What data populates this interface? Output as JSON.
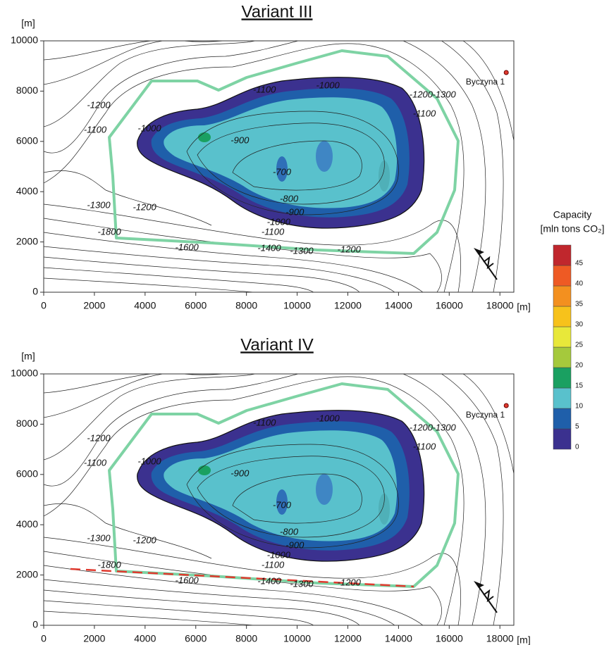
{
  "chart_data": [
    {
      "type": "contour",
      "title": "Variant III",
      "xlabel": "[m]",
      "ylabel": "[m]",
      "xlim": [
        0,
        18550
      ],
      "ylim": [
        0,
        10000
      ],
      "xticks": [
        0,
        2000,
        4000,
        6000,
        8000,
        10000,
        12000,
        14000,
        16000,
        18000
      ],
      "yticks": [
        0,
        2000,
        4000,
        6000,
        8000,
        10000
      ],
      "contour_labels": [
        {
          "value": -1200,
          "x": 2170,
          "y": 7420
        },
        {
          "value": -1100,
          "x": 2030,
          "y": 6440
        },
        {
          "value": -1000,
          "x": 4170,
          "y": 6500
        },
        {
          "value": -1100,
          "x": 8710,
          "y": 8040
        },
        {
          "value": -1000,
          "x": 11210,
          "y": 8210
        },
        {
          "value": -900,
          "x": 7740,
          "y": 6020
        },
        {
          "value": -700,
          "x": 9400,
          "y": 4760
        },
        {
          "value": -800,
          "x": 9680,
          "y": 3700
        },
        {
          "value": -900,
          "x": 9910,
          "y": 3170
        },
        {
          "value": -1000,
          "x": 9270,
          "y": 2770
        },
        {
          "value": -1100,
          "x": 9040,
          "y": 2380
        },
        {
          "value": -1200,
          "x": 14890,
          "y": 7840
        },
        {
          "value": -1100,
          "x": 15020,
          "y": 7090
        },
        {
          "value": -1300,
          "x": 15800,
          "y": 7840
        },
        {
          "value": -1300,
          "x": 2170,
          "y": 3450
        },
        {
          "value": -1200,
          "x": 3980,
          "y": 3360
        },
        {
          "value": -1800,
          "x": 2590,
          "y": 2380
        },
        {
          "value": -1600,
          "x": 5650,
          "y": 1760
        },
        {
          "value": -1400,
          "x": 8900,
          "y": 1740
        },
        {
          "value": -1300,
          "x": 10180,
          "y": 1620
        },
        {
          "value": -1200,
          "x": 12050,
          "y": 1680
        }
      ],
      "well": {
        "name": "Byczyna 1",
        "x": 18250,
        "y": 8740,
        "color": "#e03a2f"
      }
    },
    {
      "type": "contour",
      "title": "Variant IV",
      "xlabel": "[m]",
      "ylabel": "[m]",
      "xlim": [
        0,
        18550
      ],
      "ylim": [
        0,
        10000
      ],
      "xticks": [
        0,
        2000,
        4000,
        6000,
        8000,
        10000,
        12000,
        14000,
        16000,
        18000
      ],
      "yticks": [
        0,
        2000,
        4000,
        6000,
        8000,
        10000
      ],
      "contour_labels": [
        {
          "value": -1200,
          "x": 2170,
          "y": 7420
        },
        {
          "value": -1100,
          "x": 2030,
          "y": 6440
        },
        {
          "value": -1000,
          "x": 4170,
          "y": 6500
        },
        {
          "value": -1100,
          "x": 8710,
          "y": 8040
        },
        {
          "value": -1000,
          "x": 11210,
          "y": 8210
        },
        {
          "value": -900,
          "x": 7740,
          "y": 6020
        },
        {
          "value": -700,
          "x": 9400,
          "y": 4760
        },
        {
          "value": -800,
          "x": 9680,
          "y": 3700
        },
        {
          "value": -900,
          "x": 9910,
          "y": 3170
        },
        {
          "value": -1000,
          "x": 9270,
          "y": 2770
        },
        {
          "value": -1100,
          "x": 9040,
          "y": 2380
        },
        {
          "value": -1200,
          "x": 14890,
          "y": 7840
        },
        {
          "value": -1100,
          "x": 15020,
          "y": 7090
        },
        {
          "value": -1300,
          "x": 15800,
          "y": 7840
        },
        {
          "value": -1300,
          "x": 2170,
          "y": 3450
        },
        {
          "value": -1200,
          "x": 3980,
          "y": 3360
        },
        {
          "value": -1800,
          "x": 2590,
          "y": 2380
        },
        {
          "value": -1600,
          "x": 5650,
          "y": 1760
        },
        {
          "value": -1400,
          "x": 8900,
          "y": 1740
        },
        {
          "value": -1300,
          "x": 10180,
          "y": 1620
        },
        {
          "value": -1200,
          "x": 12050,
          "y": 1680
        }
      ],
      "well": {
        "name": "Byczyna 1",
        "x": 18250,
        "y": 8740,
        "color": "#e03a2f"
      }
    }
  ],
  "colorbar": {
    "title": "Capacity",
    "unit": "[mln tons CO₂]",
    "clim": [
      0,
      50
    ],
    "ticks": [
      0,
      5,
      10,
      15,
      20,
      25,
      30,
      35,
      40,
      45
    ],
    "colors": [
      "#3b318f",
      "#1f5faa",
      "#59c1cc",
      "#1aa061",
      "#a5c93c",
      "#e8e83a",
      "#f7c21b",
      "#f3901f",
      "#ee5a24",
      "#c0272d"
    ]
  }
}
